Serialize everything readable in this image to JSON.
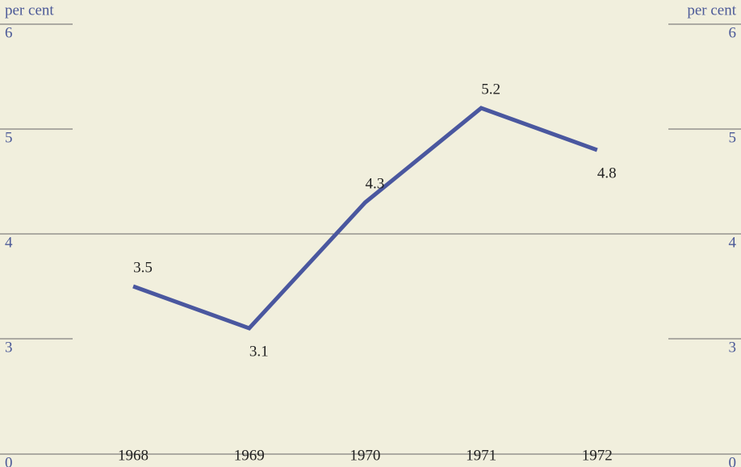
{
  "chart_data": {
    "type": "line",
    "y_axis_label": "per cent",
    "categories": [
      "1968",
      "1969",
      "1970",
      "1971",
      "1972"
    ],
    "series": [
      {
        "name": null,
        "color": "#4a579f",
        "values": [
          3.5,
          3.1,
          4.3,
          5.2,
          4.8
        ]
      }
    ],
    "value_label_positions": [
      "above",
      "below",
      "above",
      "above",
      "below"
    ],
    "ylim": [
      0,
      6
    ],
    "yticks": [
      0,
      3,
      4,
      5,
      6
    ],
    "axis_break": [
      0,
      3
    ],
    "reference_lines": [
      4
    ],
    "dual_y_axis_labels": true
  }
}
